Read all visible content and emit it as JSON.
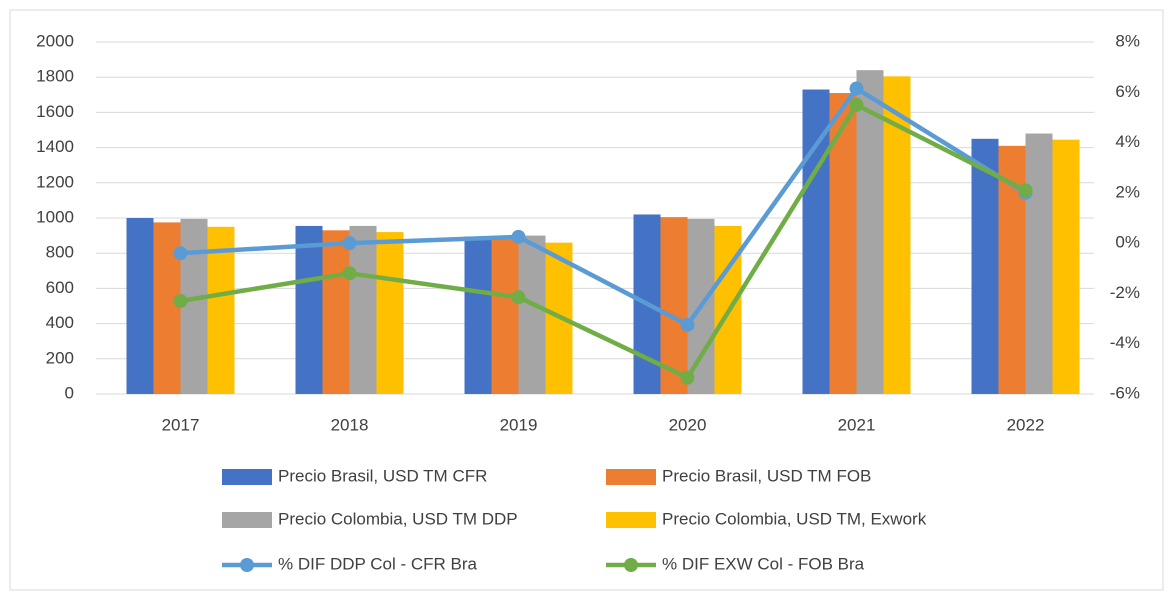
{
  "chart_data": {
    "type": "bar",
    "categories": [
      "2017",
      "2018",
      "2019",
      "2020",
      "2021",
      "2022"
    ],
    "ylim": [
      0,
      2000
    ],
    "yticks": [
      0,
      200,
      400,
      600,
      800,
      1000,
      1200,
      1400,
      1600,
      1800,
      2000
    ],
    "y2lim": [
      -6,
      8
    ],
    "y2ticks": [
      {
        "value": -6,
        "label": "-6%"
      },
      {
        "value": -4,
        "label": "-4%"
      },
      {
        "value": -2,
        "label": "-2%"
      },
      {
        "value": 0,
        "label": "0%"
      },
      {
        "value": 2,
        "label": "2%"
      },
      {
        "value": 4,
        "label": "4%"
      },
      {
        "value": 6,
        "label": "6%"
      },
      {
        "value": 8,
        "label": "8%"
      }
    ],
    "grid": true,
    "series": [
      {
        "name": "Precio Brasil, USD TM CFR",
        "type": "bar",
        "color": "#4472c4",
        "values": [
          1000,
          955,
          895,
          1020,
          1730,
          1450
        ]
      },
      {
        "name": "Precio Brasil, USD TM FOB",
        "type": "bar",
        "color": "#ed7d31",
        "values": [
          975,
          930,
          880,
          1005,
          1710,
          1410
        ]
      },
      {
        "name": "Precio Colombia, USD TM DDP",
        "type": "bar",
        "color": "#a5a5a5",
        "values": [
          995,
          955,
          900,
          995,
          1840,
          1480
        ]
      },
      {
        "name": "Precio Colombia, USD TM, Exwork",
        "type": "bar",
        "color": "#ffc000",
        "values": [
          950,
          920,
          860,
          955,
          1805,
          1445
        ]
      },
      {
        "name": "% DIF DDP Col - CFR Bra",
        "type": "line",
        "axis": "y2",
        "color": "#5b9bd5",
        "values": [
          -0.4,
          0.0,
          0.25,
          -3.25,
          6.15,
          2.0
        ]
      },
      {
        "name": "% DIF EXW Col - FOB Bra",
        "type": "line",
        "axis": "y2",
        "color": "#70ad47",
        "values": [
          -2.3,
          -1.2,
          -2.15,
          -5.35,
          5.5,
          2.1
        ]
      }
    ]
  }
}
